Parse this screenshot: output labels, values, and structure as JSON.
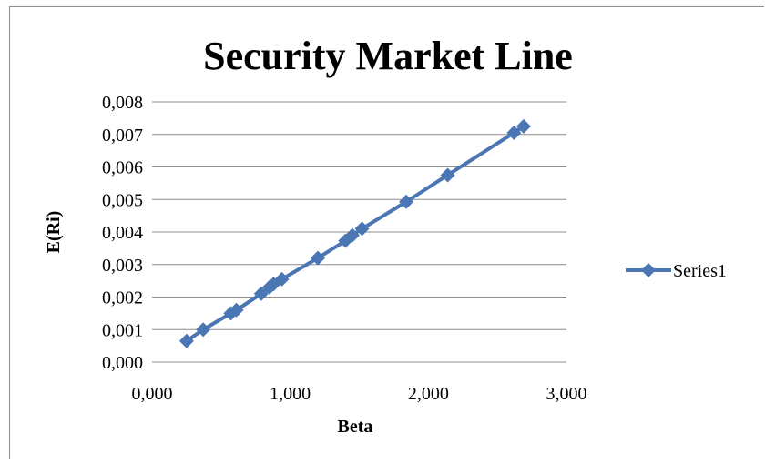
{
  "chart_data": {
    "type": "scatter",
    "title": "Security Market Line",
    "xlabel": "Beta",
    "ylabel": "E(Ri)",
    "xlim": [
      0,
      3
    ],
    "ylim": [
      0,
      0.008
    ],
    "x_ticks": [
      "0,000",
      "1,000",
      "2,000",
      "3,000"
    ],
    "y_ticks": [
      "0,000",
      "0,001",
      "0,002",
      "0,003",
      "0,004",
      "0,005",
      "0,006",
      "0,007",
      "0,008"
    ],
    "grid": "horizontal",
    "legend": "right",
    "series": [
      {
        "name": "Series1",
        "color": "#4a76b4",
        "marker": "diamond",
        "x": [
          0.25,
          0.37,
          0.57,
          0.61,
          0.79,
          0.85,
          0.88,
          0.94,
          1.2,
          1.4,
          1.45,
          1.52,
          1.84,
          2.14,
          2.62,
          2.69
        ],
        "y": [
          0.00065,
          0.001,
          0.0015,
          0.0016,
          0.0021,
          0.0023,
          0.0024,
          0.00255,
          0.0032,
          0.00373,
          0.0039,
          0.0041,
          0.00493,
          0.00575,
          0.00705,
          0.00725
        ]
      }
    ]
  }
}
